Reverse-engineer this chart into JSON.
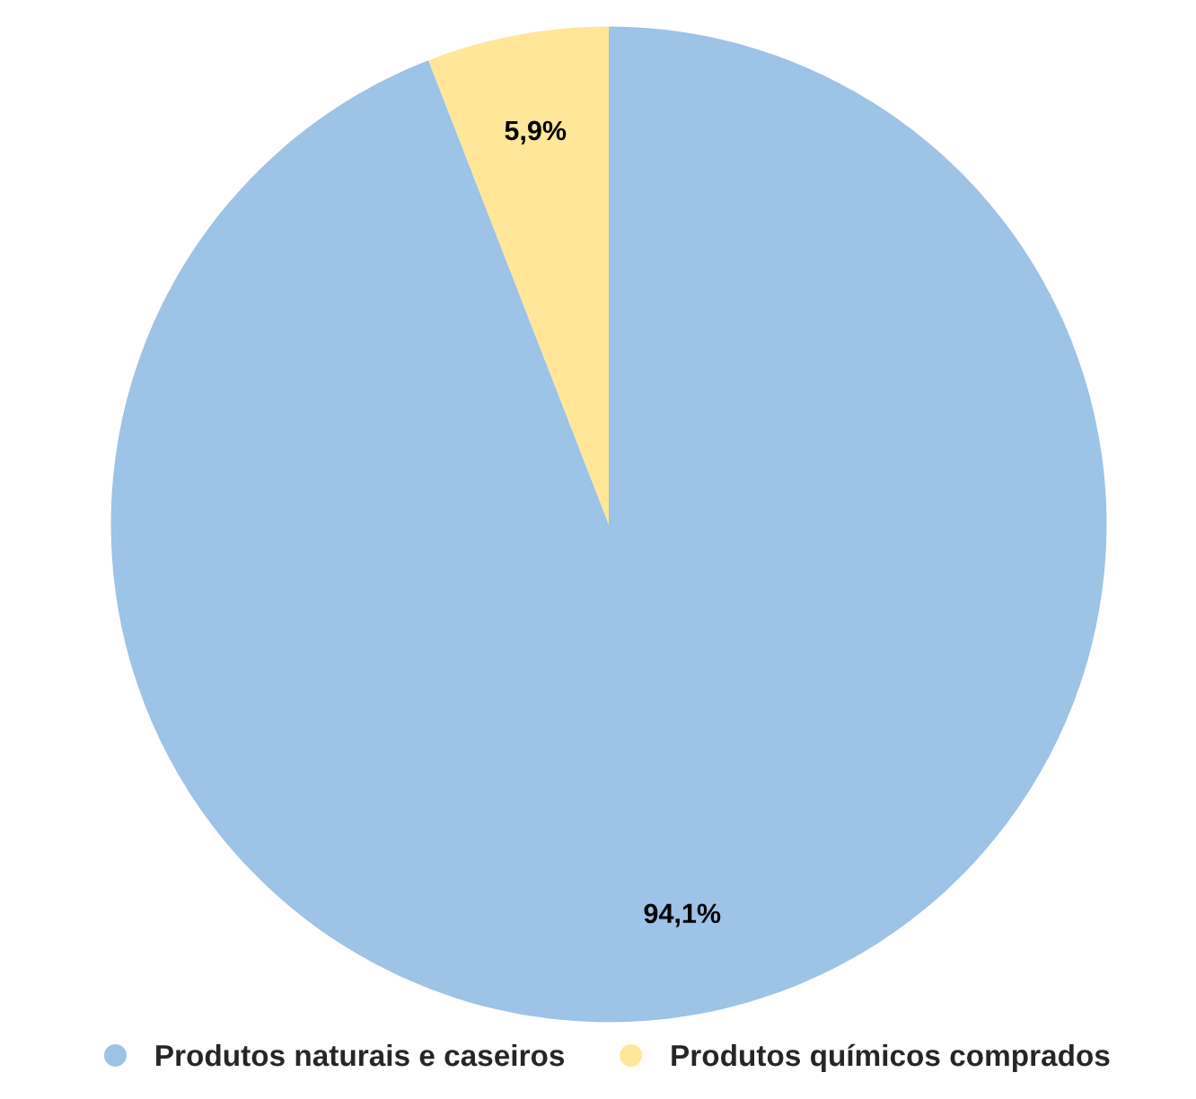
{
  "chart_data": {
    "type": "pie",
    "categories": [
      "Produtos naturais e caseiros",
      "Produtos químicos comprados"
    ],
    "values": [
      94.1,
      5.9
    ],
    "colors": [
      "#9dc3e6",
      "#ffe699"
    ],
    "value_labels": [
      "94,1%",
      "5,9%"
    ],
    "legend": "bottom"
  }
}
